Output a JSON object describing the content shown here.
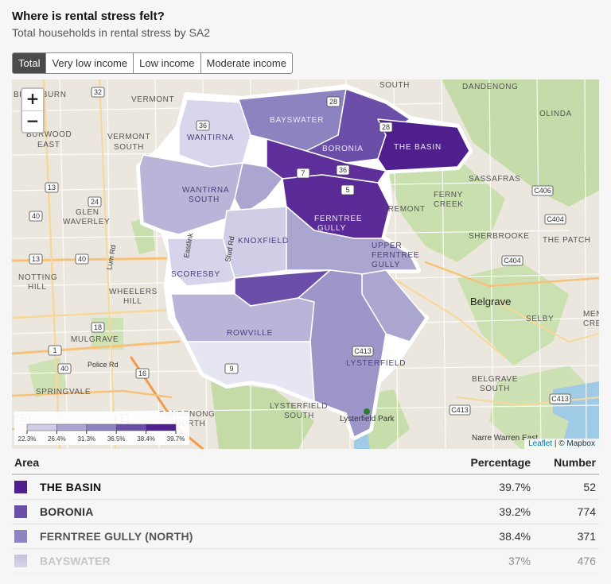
{
  "header": {
    "title": "Where is rental stress felt?",
    "subtitle": "Total households in rental stress by SA2"
  },
  "tabs": [
    {
      "label": "Total",
      "active": true
    },
    {
      "label": "Very low income",
      "active": false
    },
    {
      "label": "Low income",
      "active": false
    },
    {
      "label": "Moderate income",
      "active": false
    }
  ],
  "map": {
    "zoom_in": "+",
    "zoom_out": "−",
    "attribution_link": "Leaflet",
    "attribution_text": "| © Mapbox",
    "legend": {
      "breaks": [
        "22.3%",
        "26.4%",
        "31.3%",
        "36.5%",
        "38.4%",
        "39.7%"
      ],
      "colors": [
        "#f3f2f8",
        "#cfcde6",
        "#aaa6d0",
        "#8c84c0",
        "#6a4ea8",
        "#4f1f8e"
      ]
    },
    "place_labels": [
      "BLACKBURN",
      "VERMONT",
      "VERMONT SOUTH",
      "BURWOOD EAST",
      "GLEN WAVERLEY",
      "NOTTING HILL",
      "WHEELERS HILL",
      "MULGRAVE",
      "SPRINGVALE",
      "DANDENONG NORTH",
      "SOUTH",
      "DANDENONG",
      "OLINDA",
      "SASSAFRAS",
      "FERNY CREEK",
      "TREMONT",
      "SHERBROOKE",
      "THE PATCH",
      "Belgrave",
      "SELBY",
      "MENZIES CREEK",
      "BELGRAVE SOUTH",
      "Narre Warren East",
      "LYSTERFIELD SOUTH",
      "Lysterfield Park"
    ],
    "suburb_labels": [
      "BAYSWATER",
      "BORONIA",
      "THE BASIN",
      "WANTIRNA",
      "WANTIRNA SOUTH",
      "FERNTREE GULLY",
      "KNOXFIELD",
      "UPPER FERNTREE GULLY",
      "SCORESBY",
      "ROWVILLE",
      "LYSTERFIELD"
    ],
    "road_labels": [
      "Lum Rd",
      "Police Rd",
      "Eastlink",
      "Stud Rd"
    ],
    "shields": [
      "32",
      "13",
      "24",
      "40",
      "13",
      "40",
      "18",
      "1",
      "40",
      "16",
      "1",
      "49",
      "36",
      "28",
      "28",
      "7",
      "36",
      "5",
      "9",
      "C406",
      "C404",
      "C404",
      "C413",
      "C413",
      "C413"
    ]
  },
  "table": {
    "headers": {
      "area": "Area",
      "percentage": "Percentage",
      "number": "Number"
    },
    "rows": [
      {
        "area": "THE BASIN",
        "percentage": "39.7%",
        "number": "52",
        "color": "#4f1f8e"
      },
      {
        "area": "BORONIA",
        "percentage": "39.2%",
        "number": "774",
        "color": "#6a4ea8"
      },
      {
        "area": "FERNTREE GULLY (NORTH)",
        "percentage": "38.4%",
        "number": "371",
        "color": "#8c84c0"
      },
      {
        "area": "BAYSWATER",
        "percentage": "37%",
        "number": "476",
        "color": "#aaa6d0"
      }
    ]
  }
}
